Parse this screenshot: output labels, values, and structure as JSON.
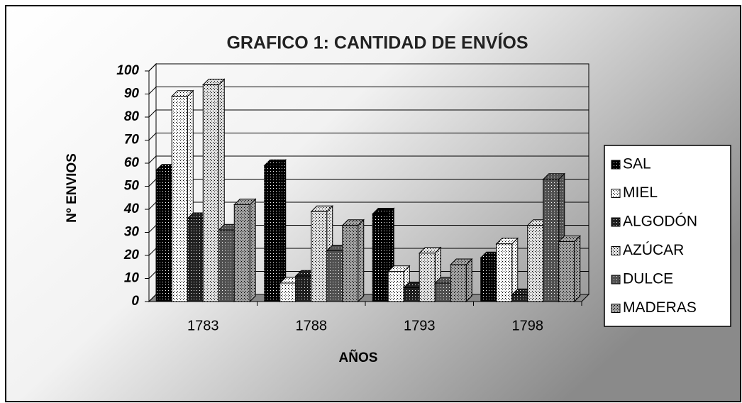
{
  "chart_data": {
    "type": "bar3d",
    "title": "GRAFICO 1: CANTIDAD DE ENVÍOS",
    "y_label": "Nº ENVIOS",
    "x_label": "AÑOS",
    "categories": [
      "1783",
      "1788",
      "1793",
      "1798"
    ],
    "series": [
      {
        "name": "SAL",
        "color": "#000000",
        "values": [
          57,
          59,
          38,
          19
        ]
      },
      {
        "name": "MIEL",
        "color": "#ffffff",
        "values": [
          89,
          8,
          13,
          25
        ]
      },
      {
        "name": "ALGODÓN",
        "color": "#202020",
        "values": [
          36,
          11,
          6,
          3
        ]
      },
      {
        "name": "AZÚCAR",
        "color": "#e0e0e0",
        "values": [
          94,
          39,
          21,
          33
        ]
      },
      {
        "name": "DULCE",
        "color": "#505050",
        "values": [
          31,
          22,
          8,
          53
        ]
      },
      {
        "name": "MADERAS",
        "color": "#a0a0a0",
        "values": [
          42,
          33,
          16,
          26
        ]
      }
    ],
    "ylim": [
      0,
      100
    ],
    "yticks": [
      0,
      10,
      20,
      30,
      40,
      50,
      60,
      70,
      80,
      90,
      100
    ],
    "grid": true,
    "legend": "right"
  }
}
